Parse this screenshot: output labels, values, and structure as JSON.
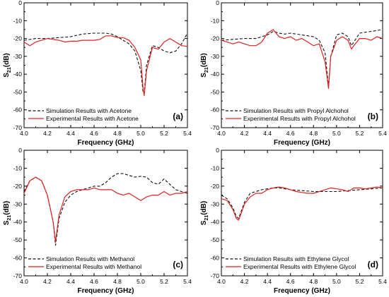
{
  "colors": {
    "simulation": "#111111",
    "experimental": "#e02020",
    "axes": "#000000",
    "background": "#ffffff"
  },
  "chart_data": [
    {
      "type": "line",
      "panel_label": "(a)",
      "xlabel": "Frequency (GHz)",
      "ylabel": "S21(dB)",
      "xlim": [
        4.0,
        5.4
      ],
      "ylim": [
        -70,
        0
      ],
      "xticks": [
        "4.0",
        "4.2",
        "4.4",
        "4.6",
        "4.8",
        "5.0",
        "5.2",
        "5.4"
      ],
      "yticks": [
        "0",
        "-10",
        "-20",
        "-30",
        "-40",
        "-50",
        "-60",
        "-70"
      ],
      "legend_position": "bottom-left",
      "grid": false,
      "series": [
        {
          "name": "Simulation Results with Acetone",
          "style": "dashed",
          "x": [
            4.0,
            4.1,
            4.2,
            4.3,
            4.4,
            4.5,
            4.6,
            4.7,
            4.75,
            4.8,
            4.85,
            4.9,
            4.95,
            5.0,
            5.02,
            5.03,
            5.05,
            5.1,
            5.15,
            5.2,
            5.25,
            5.3,
            5.35,
            5.4
          ],
          "y": [
            -21,
            -20,
            -20,
            -19.5,
            -19,
            -17.5,
            -17,
            -17,
            -17.5,
            -19,
            -21,
            -23,
            -27,
            -38,
            -50,
            -51,
            -35,
            -24,
            -25,
            -27,
            -28,
            -27,
            -23,
            -17
          ]
        },
        {
          "name": "Experimental Results with Acetone",
          "style": "solid",
          "x": [
            4.0,
            4.05,
            4.1,
            4.15,
            4.2,
            4.25,
            4.3,
            4.35,
            4.4,
            4.45,
            4.5,
            4.55,
            4.6,
            4.65,
            4.7,
            4.75,
            4.8,
            4.85,
            4.9,
            4.95,
            5.0,
            5.02,
            5.03,
            5.05,
            5.1,
            5.15,
            5.2,
            5.25,
            5.3,
            5.35,
            5.4
          ],
          "y": [
            -22,
            -24,
            -22,
            -21,
            -20,
            -20.5,
            -21,
            -22,
            -21.5,
            -21.5,
            -21,
            -21,
            -21,
            -20.5,
            -18.5,
            -18.5,
            -19.5,
            -19.5,
            -21,
            -25,
            -32,
            -48,
            -52,
            -38,
            -25,
            -26,
            -22,
            -20,
            -22,
            -24,
            -24.5
          ]
        }
      ]
    },
    {
      "type": "line",
      "panel_label": "(b)",
      "xlabel": "Frequency (GHz)",
      "ylabel": "S21(dB)",
      "xlim": [
        4.0,
        5.4
      ],
      "ylim": [
        -70,
        0
      ],
      "xticks": [
        "4.0",
        "4.2",
        "4.4",
        "4.6",
        "4.8",
        "5.0",
        "5.2",
        "5.4"
      ],
      "yticks": [
        "0",
        "-10",
        "-20",
        "-30",
        "-40",
        "-50",
        "-60",
        "-70"
      ],
      "legend_position": "bottom-left",
      "grid": false,
      "series": [
        {
          "name": "Simulation Results with Propyl Alchohol",
          "style": "dashed",
          "x": [
            4.0,
            4.1,
            4.2,
            4.3,
            4.4,
            4.45,
            4.5,
            4.55,
            4.6,
            4.7,
            4.8,
            4.85,
            4.9,
            4.93,
            4.95,
            5.0,
            5.05,
            5.1,
            5.13,
            5.15,
            5.2,
            5.25,
            5.3,
            5.35,
            5.4
          ],
          "y": [
            -21,
            -20.5,
            -20,
            -20,
            -18,
            -16,
            -17,
            -17.5,
            -17,
            -18,
            -19,
            -21,
            -28,
            -47,
            -30,
            -18,
            -17,
            -19,
            -24,
            -22,
            -17,
            -16.5,
            -16,
            -15.5,
            -15
          ]
        },
        {
          "name": "Experimental Results with Propyl Alchohol",
          "style": "solid",
          "x": [
            4.0,
            4.05,
            4.1,
            4.15,
            4.2,
            4.25,
            4.3,
            4.35,
            4.4,
            4.45,
            4.5,
            4.55,
            4.6,
            4.65,
            4.7,
            4.75,
            4.8,
            4.85,
            4.9,
            4.93,
            4.95,
            5.0,
            5.05,
            5.1,
            5.13,
            5.15,
            5.2,
            5.25,
            5.3,
            5.35,
            5.4
          ],
          "y": [
            -21,
            -22,
            -23,
            -22,
            -23,
            -24,
            -24,
            -22,
            -17,
            -15,
            -19,
            -20,
            -19,
            -21,
            -20,
            -22,
            -24,
            -23,
            -33,
            -48,
            -30,
            -21,
            -19,
            -21,
            -26,
            -24,
            -20,
            -20,
            -21,
            -19,
            -20
          ]
        }
      ]
    },
    {
      "type": "line",
      "panel_label": "(c)",
      "xlabel": "Frequency (GHz)",
      "ylabel": "S21(dB)",
      "xlim": [
        4.0,
        5.4
      ],
      "ylim": [
        -70,
        0
      ],
      "xticks": [
        "4.0",
        "4.2",
        "4.4",
        "4.6",
        "4.8",
        "5.0",
        "5.2",
        "5.4"
      ],
      "yticks": [
        "0",
        "-10",
        "-20",
        "-30",
        "-40",
        "-50",
        "-60",
        "-70"
      ],
      "legend_position": "bottom-left",
      "grid": false,
      "series": [
        {
          "name": "Simulation Results with Methanol",
          "style": "dashed",
          "x": [
            4.0,
            4.05,
            4.1,
            4.15,
            4.2,
            4.25,
            4.27,
            4.3,
            4.35,
            4.4,
            4.45,
            4.5,
            4.55,
            4.6,
            4.65,
            4.7,
            4.75,
            4.8,
            4.85,
            4.9,
            4.95,
            5.0,
            5.05,
            5.1,
            5.15,
            5.2,
            5.25,
            5.3,
            5.35,
            5.4
          ],
          "y": [
            -23,
            -17,
            -15,
            -17,
            -25,
            -40,
            -53,
            -38,
            -29,
            -25,
            -23,
            -22,
            -21,
            -20,
            -20,
            -18,
            -15,
            -13,
            -13,
            -14,
            -15,
            -14.5,
            -15,
            -18,
            -19,
            -16,
            -19,
            -22,
            -23,
            -24
          ]
        },
        {
          "name": "Experimental Results with Methanol",
          "style": "solid",
          "x": [
            4.0,
            4.05,
            4.1,
            4.15,
            4.2,
            4.25,
            4.27,
            4.3,
            4.35,
            4.4,
            4.45,
            4.5,
            4.55,
            4.6,
            4.65,
            4.7,
            4.75,
            4.8,
            4.85,
            4.9,
            4.95,
            5.0,
            5.05,
            5.1,
            5.15,
            5.2,
            5.25,
            5.3,
            5.35,
            5.4
          ],
          "y": [
            -24,
            -17,
            -15,
            -17,
            -25,
            -40,
            -51,
            -36,
            -26,
            -23,
            -22,
            -22,
            -22,
            -21,
            -22,
            -22,
            -22,
            -24,
            -25,
            -24,
            -26,
            -28,
            -26,
            -25,
            -25,
            -23,
            -25,
            -24,
            -24,
            -23
          ]
        }
      ]
    },
    {
      "type": "line",
      "panel_label": "(d)",
      "xlabel": "Frequency (GHz)",
      "ylabel": "S21(dB)",
      "xlim": [
        4.0,
        5.4
      ],
      "ylim": [
        -70,
        0
      ],
      "xticks": [
        "4.0",
        "4.2",
        "4.4",
        "4.6",
        "4.8",
        "5.0",
        "5.2",
        "5.4"
      ],
      "yticks": [
        "0",
        "-10",
        "-20",
        "-30",
        "-40",
        "-50",
        "-60",
        "-70"
      ],
      "legend_position": "bottom-left",
      "grid": false,
      "series": [
        {
          "name": "Simulation Results with Ethylene Glycol",
          "style": "dashed",
          "x": [
            4.0,
            4.05,
            4.1,
            4.13,
            4.15,
            4.2,
            4.25,
            4.3,
            4.35,
            4.4,
            4.45,
            4.5,
            4.6,
            4.7,
            4.8,
            4.9,
            5.0,
            5.1,
            5.2,
            5.3,
            5.4
          ],
          "y": [
            -25,
            -27,
            -32,
            -37,
            -38,
            -29,
            -24,
            -23,
            -22,
            -21.5,
            -21,
            -21,
            -22,
            -22.5,
            -23,
            -23,
            -23,
            -22.5,
            -22,
            -21.5,
            -21
          ]
        },
        {
          "name": "Experimental Results with Ethylene Glycol",
          "style": "solid",
          "x": [
            4.0,
            4.05,
            4.1,
            4.13,
            4.15,
            4.2,
            4.25,
            4.3,
            4.35,
            4.4,
            4.45,
            4.5,
            4.55,
            4.6,
            4.65,
            4.7,
            4.75,
            4.8,
            4.85,
            4.9,
            4.95,
            5.0,
            5.05,
            5.1,
            5.15,
            5.2,
            5.25,
            5.3,
            5.35,
            5.4
          ],
          "y": [
            -27,
            -28,
            -33,
            -38,
            -39,
            -30,
            -26,
            -24,
            -24,
            -22,
            -21,
            -20.5,
            -21,
            -22,
            -23,
            -23.5,
            -24,
            -24,
            -23,
            -22,
            -21,
            -21.5,
            -22,
            -23,
            -21,
            -21,
            -21.5,
            -21,
            -20.5,
            -21
          ]
        }
      ]
    }
  ]
}
